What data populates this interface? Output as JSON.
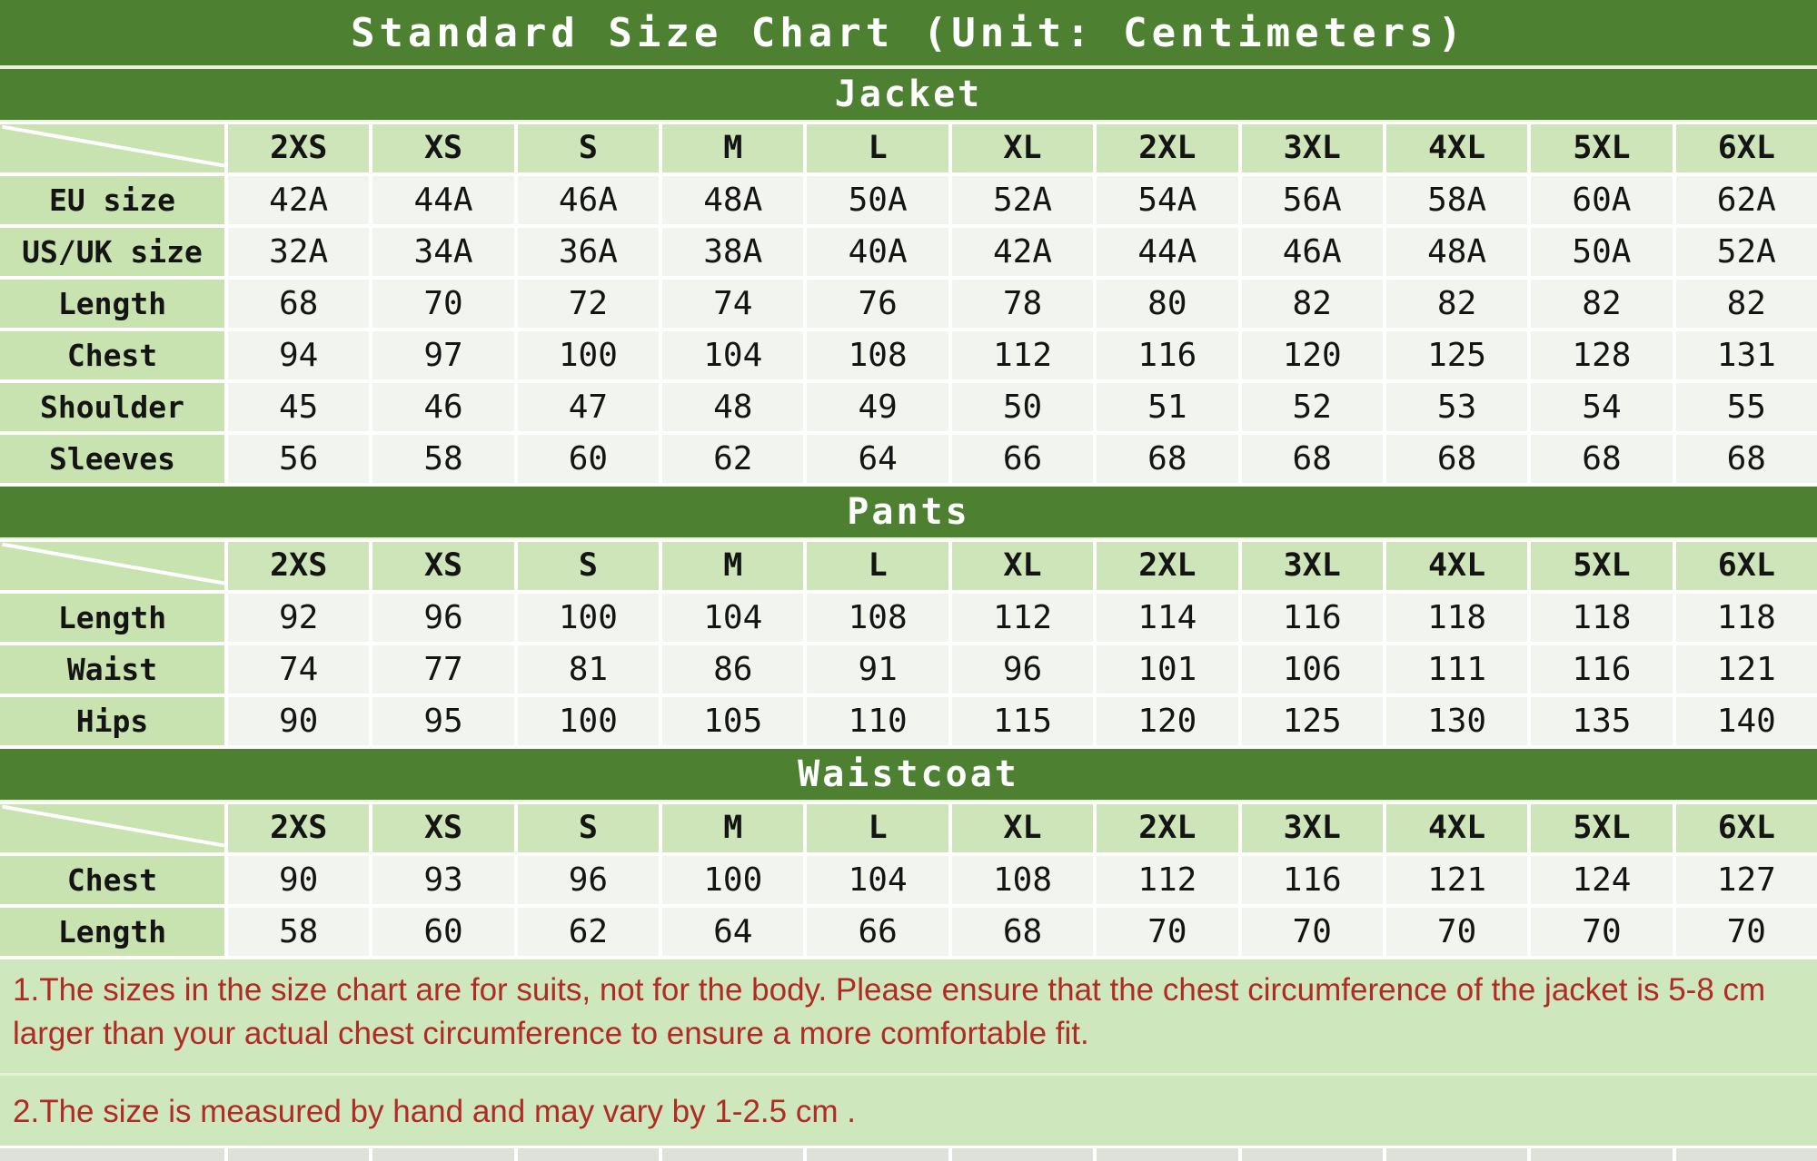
{
  "title": "Standard Size Chart (Unit: Centimeters)",
  "chart_data": [
    {
      "type": "table",
      "title": "Jacket",
      "columns": [
        "2XS",
        "XS",
        "S",
        "M",
        "L",
        "XL",
        "2XL",
        "3XL",
        "4XL",
        "5XL",
        "6XL"
      ],
      "rows": [
        {
          "label": "EU size",
          "values": [
            "42A",
            "44A",
            "46A",
            "48A",
            "50A",
            "52A",
            "54A",
            "56A",
            "58A",
            "60A",
            "62A"
          ]
        },
        {
          "label": "US/UK size",
          "values": [
            "32A",
            "34A",
            "36A",
            "38A",
            "40A",
            "42A",
            "44A",
            "46A",
            "48A",
            "50A",
            "52A"
          ]
        },
        {
          "label": "Length",
          "values": [
            "68",
            "70",
            "72",
            "74",
            "76",
            "78",
            "80",
            "82",
            "82",
            "82",
            "82"
          ]
        },
        {
          "label": "Chest",
          "values": [
            "94",
            "97",
            "100",
            "104",
            "108",
            "112",
            "116",
            "120",
            "125",
            "128",
            "131"
          ]
        },
        {
          "label": "Shoulder",
          "values": [
            "45",
            "46",
            "47",
            "48",
            "49",
            "50",
            "51",
            "52",
            "53",
            "54",
            "55"
          ]
        },
        {
          "label": "Sleeves",
          "values": [
            "56",
            "58",
            "60",
            "62",
            "64",
            "66",
            "68",
            "68",
            "68",
            "68",
            "68"
          ]
        }
      ]
    },
    {
      "type": "table",
      "title": "Pants",
      "columns": [
        "2XS",
        "XS",
        "S",
        "M",
        "L",
        "XL",
        "2XL",
        "3XL",
        "4XL",
        "5XL",
        "6XL"
      ],
      "rows": [
        {
          "label": "Length",
          "values": [
            "92",
            "96",
            "100",
            "104",
            "108",
            "112",
            "114",
            "116",
            "118",
            "118",
            "118"
          ]
        },
        {
          "label": "Waist",
          "values": [
            "74",
            "77",
            "81",
            "86",
            "91",
            "96",
            "101",
            "106",
            "111",
            "116",
            "121"
          ]
        },
        {
          "label": "Hips",
          "values": [
            "90",
            "95",
            "100",
            "105",
            "110",
            "115",
            "120",
            "125",
            "130",
            "135",
            "140"
          ]
        }
      ]
    },
    {
      "type": "table",
      "title": "Waistcoat",
      "columns": [
        "2XS",
        "XS",
        "S",
        "M",
        "L",
        "XL",
        "2XL",
        "3XL",
        "4XL",
        "5XL",
        "6XL"
      ],
      "rows": [
        {
          "label": "Chest",
          "values": [
            "90",
            "93",
            "96",
            "100",
            "104",
            "108",
            "112",
            "116",
            "121",
            "124",
            "127"
          ]
        },
        {
          "label": "Length",
          "values": [
            "58",
            "60",
            "62",
            "64",
            "66",
            "68",
            "70",
            "70",
            "70",
            "70",
            "70"
          ]
        }
      ]
    }
  ],
  "notes": [
    "1.The sizes in the size chart are for suits, not for the body. Please ensure that the chest circumference of the jacket is 5-8 cm larger than your actual chest circumference to ensure a more comfortable fit.",
    "2.The size is measured by hand and may vary by 1-2.5 cm ."
  ],
  "colors": {
    "banner_green": "#4d8030",
    "header_cell_green": "#cde5b8",
    "label_cell_green": "#c8e2b0",
    "data_cell": "#f2f4ef",
    "note_background": "#cfe7bc",
    "note_text_red": "#b02a26"
  }
}
